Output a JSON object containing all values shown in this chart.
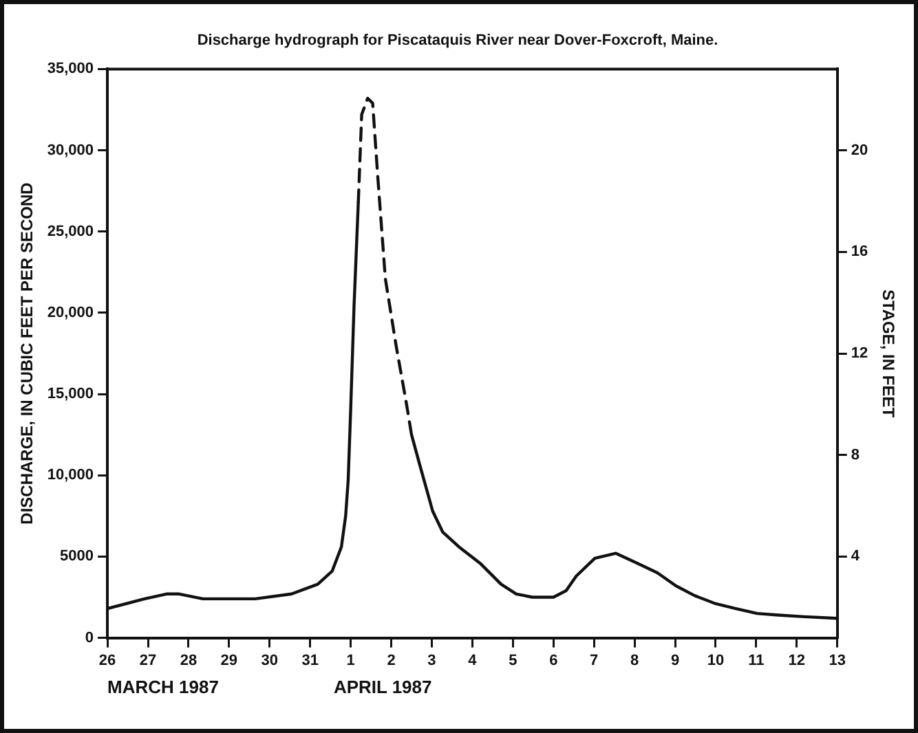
{
  "chart_data": {
    "type": "line",
    "title": "Discharge hydrograph for Piscataquis River near Dover-Foxcroft, Maine.",
    "ylabel": "DISCHARGE, IN CUBIC FEET PER SECOND",
    "y2label": "STAGE, IN FEET",
    "annotations": [
      "MARCH 1987",
      "APRIL 1987"
    ],
    "series": [
      {
        "color": "#111111",
        "line_style": "solid",
        "x": [
          "1987-03-26T00:00",
          "1987-03-26T22:00",
          "1987-03-27T11:00",
          "1987-03-27T18:30",
          "1987-03-28T08:30",
          "1987-03-29T00:00",
          "1987-03-29T15:30",
          "1987-03-30T13:00",
          "1987-03-31T04:30",
          "1987-03-31T13:00",
          "1987-03-31T18:30",
          "1987-03-31T21:00",
          "1987-03-31T22:30",
          "1987-04-01T00:00",
          "1987-04-01T02:00",
          "1987-04-01T04:30"
        ],
        "values": [
          1800,
          2400,
          2700,
          2700,
          2400,
          2400,
          2400,
          2700,
          3300,
          4100,
          5600,
          7500,
          9700,
          14100,
          20500,
          26800
        ]
      },
      {
        "color": "#111111",
        "line_style": "dashed",
        "x": [
          "1987-04-01T04:30",
          "1987-04-01T06:30",
          "1987-04-01T10:00",
          "1987-04-01T13:00",
          "1987-04-01T16:00",
          "1987-04-01T20:30",
          "1987-04-02T03:00",
          "1987-04-02T09:00",
          "1987-04-02T12:00"
        ],
        "values": [
          26800,
          32200,
          33200,
          32900,
          28400,
          22100,
          17900,
          14400,
          12500
        ]
      },
      {
        "color": "#111111",
        "line_style": "solid",
        "x": [
          "1987-04-02T12:00",
          "1987-04-02T17:00",
          "1987-04-03T00:30",
          "1987-04-03T06:30",
          "1987-04-03T16:00",
          "1987-04-04T04:30",
          "1987-04-04T17:00",
          "1987-04-05T02:00",
          "1987-04-05T11:30",
          "1987-04-06T00:00",
          "1987-04-06T07:30",
          "1987-04-06T13:30",
          "1987-04-07T00:30",
          "1987-04-07T13:00",
          "1987-04-08T01:30",
          "1987-04-08T13:30",
          "1987-04-09T00:30",
          "1987-04-09T11:30",
          "1987-04-10T00:00",
          "1987-04-10T12:00",
          "1987-04-11T00:30",
          "1987-04-11T13:00",
          "1987-04-12T04:30",
          "1987-04-13T00:00"
        ],
        "values": [
          12500,
          10600,
          7800,
          6500,
          5600,
          4600,
          3300,
          2700,
          2500,
          2500,
          2900,
          3800,
          4900,
          5200,
          4600,
          4000,
          3200,
          2600,
          2100,
          1800,
          1500,
          1400,
          1300,
          1200
        ]
      }
    ],
    "xlim": [
      "1987-03-26",
      "1987-04-13"
    ],
    "xticks": [
      {
        "value": "1987-03-26",
        "label": "26"
      },
      {
        "value": "1987-03-27",
        "label": "27"
      },
      {
        "value": "1987-03-28",
        "label": "28"
      },
      {
        "value": "1987-03-29",
        "label": "29"
      },
      {
        "value": "1987-03-30",
        "label": "30"
      },
      {
        "value": "1987-03-31",
        "label": "31"
      },
      {
        "value": "1987-04-01",
        "label": "1"
      },
      {
        "value": "1987-04-02",
        "label": "2"
      },
      {
        "value": "1987-04-03",
        "label": "3"
      },
      {
        "value": "1987-04-04",
        "label": "4"
      },
      {
        "value": "1987-04-05",
        "label": "5"
      },
      {
        "value": "1987-04-06",
        "label": "6"
      },
      {
        "value": "1987-04-07",
        "label": "7"
      },
      {
        "value": "1987-04-08",
        "label": "8"
      },
      {
        "value": "1987-04-09",
        "label": "9"
      },
      {
        "value": "1987-04-10",
        "label": "10"
      },
      {
        "value": "1987-04-11",
        "label": "11"
      },
      {
        "value": "1987-04-12",
        "label": "12"
      },
      {
        "value": "1987-04-13",
        "label": "13"
      }
    ],
    "ylim": [
      0,
      35000
    ],
    "yticks": [
      0,
      5000,
      {
        "value": 10000,
        "label": "10,000"
      },
      {
        "value": 15000,
        "label": "15,000"
      },
      {
        "value": 20000,
        "label": "20,000"
      },
      {
        "value": 25000,
        "label": "25,000"
      },
      {
        "value": 30000,
        "label": "30,000"
      },
      {
        "value": 35000,
        "label": "35,000"
      }
    ],
    "y2lim": [
      0.8,
      23.2
    ],
    "y2ticks": [
      4,
      8,
      12,
      16,
      20
    ],
    "grid": false,
    "legend": false,
    "marker": "none"
  }
}
